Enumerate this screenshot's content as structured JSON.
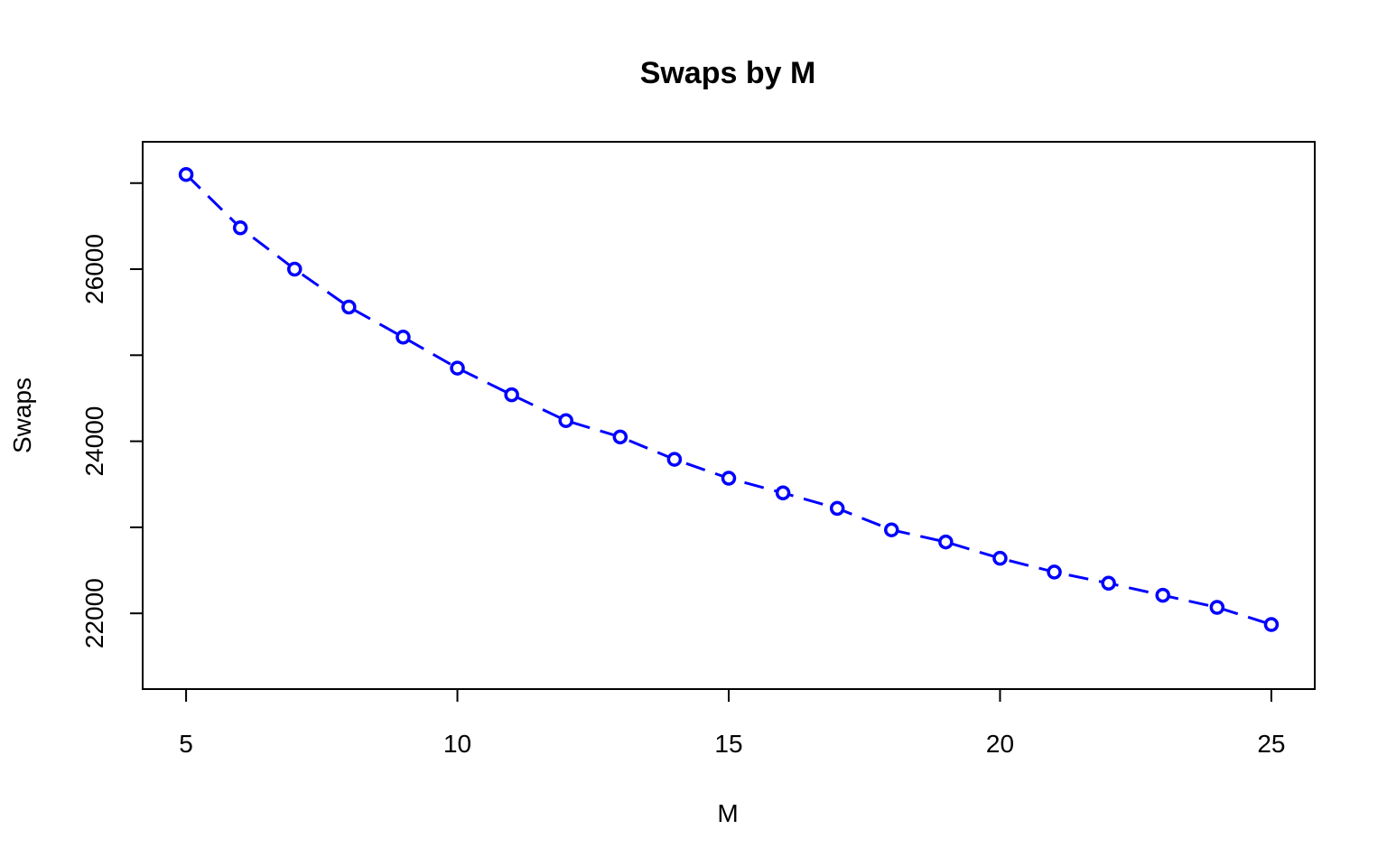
{
  "chart_data": {
    "type": "line",
    "title": "Swaps by M",
    "xlabel": "M",
    "ylabel": "Swaps",
    "xlim": [
      4.2,
      25.8
    ],
    "ylim": [
      21120,
      27480
    ],
    "x_ticks": [
      5,
      10,
      15,
      20,
      25
    ],
    "y_ticks": [
      22000,
      23000,
      24000,
      25000,
      26000,
      27000
    ],
    "y_tick_labels": [
      "22000",
      "24000",
      "26000"
    ],
    "y_tick_label_values": [
      22000,
      24000,
      26000
    ],
    "grid": false,
    "legend": "none",
    "line_style": "dashed",
    "marker": "open-circle",
    "color": "#0000FF",
    "series": [
      {
        "x": [
          5,
          6,
          7,
          8,
          9,
          10,
          11,
          12,
          13,
          14,
          15,
          16,
          17,
          18,
          19,
          20,
          21,
          22,
          23,
          24,
          25
        ],
        "values": [
          27100,
          26480,
          26000,
          25560,
          25210,
          24850,
          24540,
          24240,
          24050,
          23790,
          23570,
          23400,
          23220,
          22970,
          22830,
          22640,
          22480,
          22350,
          22210,
          22070,
          21870
        ]
      }
    ]
  }
}
